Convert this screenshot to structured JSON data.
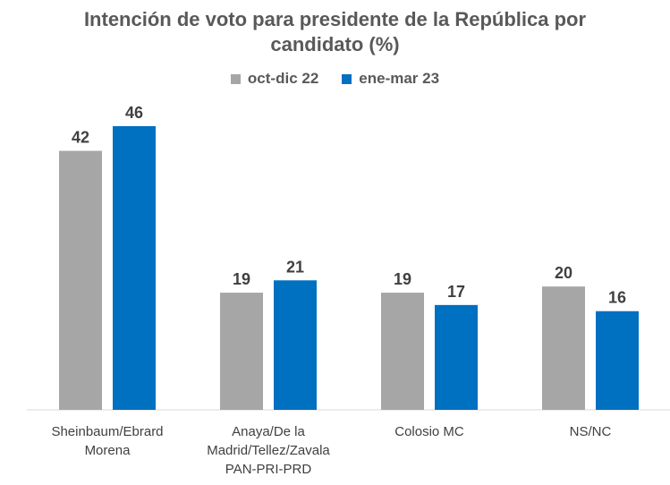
{
  "chart_data": {
    "type": "bar",
    "title_lines": [
      "Intención de voto para presidente de la República por",
      "candidato (%)"
    ],
    "categories": [
      [
        "Sheinbaum/Ebrard",
        "Morena"
      ],
      [
        "Anaya/De la",
        "Madrid/Tellez/Zavala",
        "PAN-PRI-PRD"
      ],
      [
        "Colosio MC"
      ],
      [
        "NS/NC"
      ]
    ],
    "series": [
      {
        "name": "oct-dic 22",
        "color": "#A6A6A6",
        "values": [
          42,
          19,
          19,
          20
        ]
      },
      {
        "name": "ene-mar 23",
        "color": "#0070C0",
        "values": [
          46,
          21,
          17,
          16
        ]
      }
    ],
    "ylim": [
      0,
      46
    ],
    "legend": "top",
    "grid": false
  }
}
